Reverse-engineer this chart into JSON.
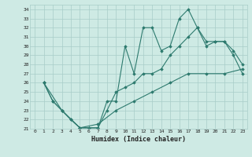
{
  "xlabel": "Humidex (Indice chaleur)",
  "xlim": [
    -0.5,
    23.5
  ],
  "ylim": [
    21,
    34.5
  ],
  "yticks": [
    21,
    22,
    23,
    24,
    25,
    26,
    27,
    28,
    29,
    30,
    31,
    32,
    33,
    34
  ],
  "xticks": [
    0,
    1,
    2,
    3,
    4,
    5,
    6,
    7,
    8,
    9,
    10,
    11,
    12,
    13,
    14,
    15,
    16,
    17,
    18,
    19,
    20,
    21,
    22,
    23
  ],
  "bg_color": "#ceeae4",
  "grid_color": "#a8cdc8",
  "line_color": "#2d7a6e",
  "line1_x": [
    1,
    2,
    3,
    4,
    5,
    6,
    7,
    8,
    9,
    10,
    11,
    12,
    13,
    14,
    15,
    16,
    17,
    18,
    19,
    20,
    21,
    22,
    23
  ],
  "line1_y": [
    26,
    24,
    23,
    22,
    21.1,
    21.1,
    21.1,
    24,
    24,
    30,
    27,
    32,
    32,
    29.5,
    30,
    33,
    34,
    32,
    30,
    30.5,
    30.5,
    29,
    27
  ],
  "line2_x": [
    1,
    2,
    3,
    4,
    5,
    6,
    7,
    8,
    9,
    10,
    11,
    12,
    13,
    14,
    15,
    16,
    17,
    18,
    19,
    20,
    21,
    22,
    23
  ],
  "line2_y": [
    26,
    24,
    23,
    22,
    21.1,
    21.1,
    21.1,
    23,
    25,
    25.5,
    26,
    27,
    27,
    27.5,
    29,
    30,
    31,
    32,
    30.5,
    30.5,
    30.5,
    29.5,
    28
  ],
  "line3_x": [
    1,
    3,
    5,
    7,
    9,
    11,
    13,
    15,
    17,
    19,
    21,
    23
  ],
  "line3_y": [
    26,
    23,
    21.1,
    21.5,
    23,
    24,
    25,
    26,
    27,
    27,
    27,
    27.5
  ]
}
